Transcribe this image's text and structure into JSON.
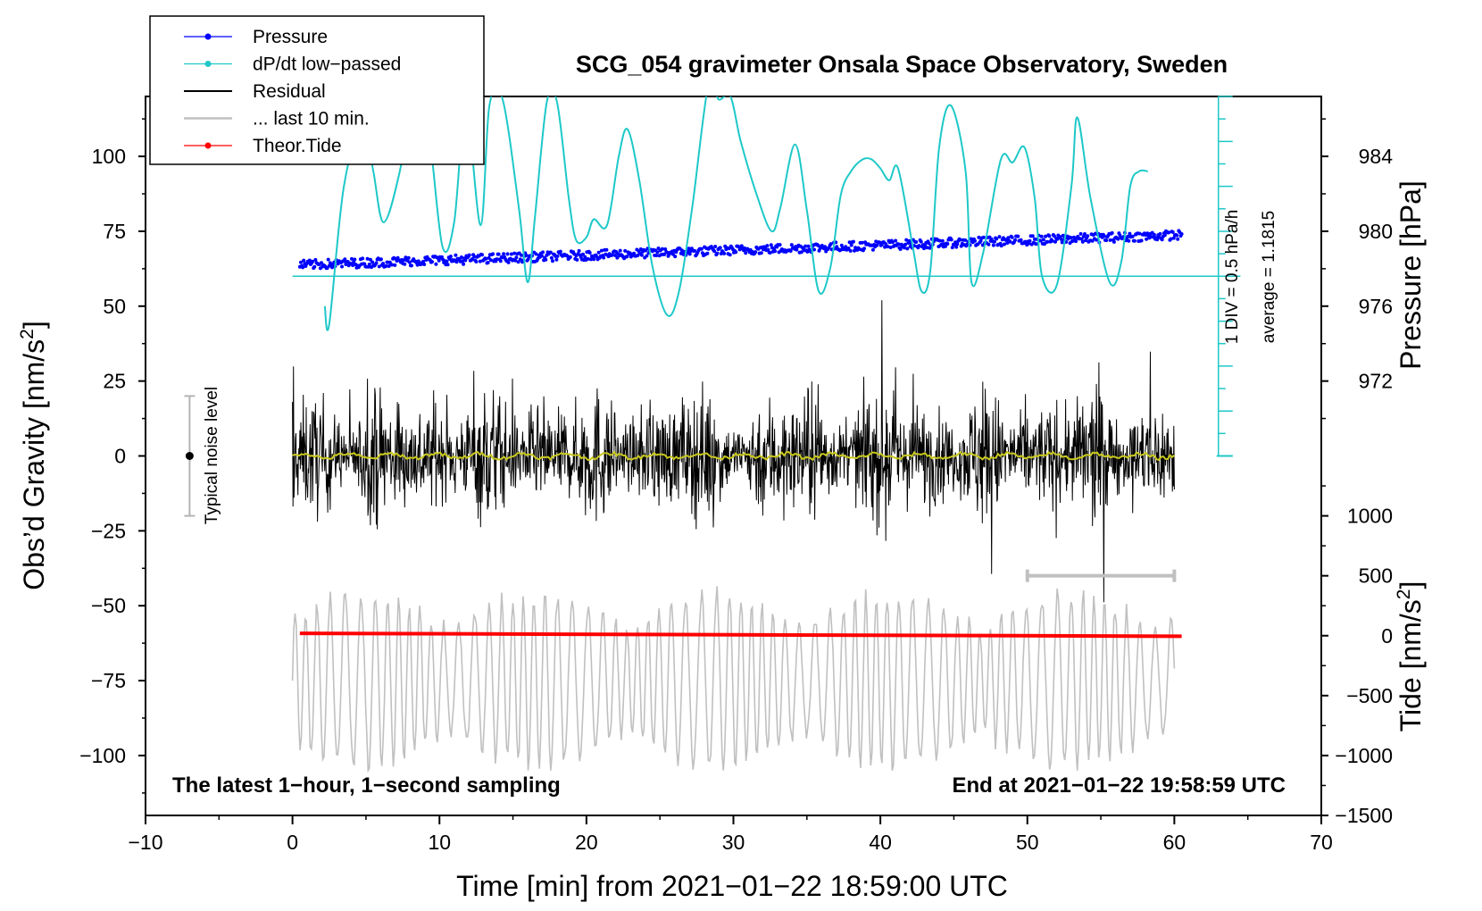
{
  "chart_data": {
    "type": "line",
    "title": "SCG_054 gravimeter Onsala Space Observatory, Sweden",
    "xlabel": "Time [min] from 2021−01−22 18:59:00 UTC",
    "xlim": [
      -10,
      70
    ],
    "xticks": [
      -10,
      0,
      10,
      20,
      30,
      40,
      50,
      60,
      70
    ],
    "x_tick_labels": [
      "−10",
      "0",
      "10",
      "20",
      "30",
      "40",
      "50",
      "60",
      "70"
    ],
    "left_axis": {
      "label_main": "Obs’d Gravity [nm/s",
      "label_sup": "2",
      "label_end": "]",
      "ylim": [
        -120,
        120
      ],
      "ticks": [
        100,
        75,
        50,
        25,
        0,
        -25,
        -50,
        -75,
        -100
      ],
      "tick_labels": [
        "100",
        "75",
        "50",
        "25",
        "0",
        "−25",
        "−50",
        "−75",
        "−100"
      ]
    },
    "pressure_axis": {
      "label": "Pressure [hPa]",
      "ticks": [
        984,
        980,
        976,
        972
      ],
      "tick_labels": [
        "984",
        "980",
        "976",
        "972"
      ],
      "gravity_equiv": [
        [
          984,
          100
        ],
        [
          972,
          25
        ]
      ]
    },
    "tide_axis": {
      "label_main": "Tide [nm/s",
      "label_sup": "2",
      "label_end": "]",
      "ticks": [
        1000,
        500,
        0,
        -500,
        -1000,
        -1500
      ],
      "tick_labels": [
        "1000",
        "500",
        "0",
        "−500",
        "−1000",
        "−1500"
      ],
      "gravity_equiv": [
        [
          1000,
          -20
        ],
        [
          -1500,
          -120
        ]
      ]
    },
    "legend": [
      {
        "name": "Pressure",
        "color": "#0000ff",
        "marker": true
      },
      {
        "name": "dP/dt low−passed",
        "color": "#1ec8c8",
        "marker": true
      },
      {
        "name": "Residual",
        "color": "#000000",
        "marker": false
      },
      {
        "name": "... last 10 min.",
        "color": "#c0c0c0",
        "marker": false
      },
      {
        "name": "Theor.Tide",
        "color": "#ff0000",
        "marker": true
      }
    ],
    "series": [
      {
        "name": "Pressure",
        "unit": "hPa",
        "color": "#0000ff",
        "x_range": [
          0.5,
          60.5
        ],
        "values_start_end": [
          978.2,
          979.8
        ],
        "scatter_hPa": 0.25
      },
      {
        "name": "dP/dt low−passed",
        "color": "#1ec8c8",
        "x": [
          2.2,
          2.5,
          3.5,
          4.8,
          5.5,
          6.2,
          7.3,
          8.5,
          9.3,
          10.2,
          11.0,
          11.8,
          12.8,
          13.4,
          14.3,
          15.4,
          16.0,
          16.5,
          17.3,
          18.0,
          18.8,
          19.3,
          20.0,
          20.5,
          21.4,
          22.2,
          22.8,
          23.6,
          24.5,
          25.5,
          26.3,
          27.2,
          28.3,
          29.0,
          29.8,
          30.5,
          31.6,
          32.6,
          33.2,
          34.2,
          35.0,
          35.8,
          36.6,
          37.3,
          38.0,
          38.8,
          39.4,
          40.0,
          40.6,
          41.2,
          42.2,
          42.8,
          43.4,
          44.0,
          44.8,
          45.8,
          46.2,
          47.0,
          48.2,
          49.0,
          49.8,
          50.5,
          51.0,
          52.0,
          53.0,
          53.4,
          54.3,
          55.6,
          56.4,
          57.0,
          57.6,
          58.2
        ],
        "values": [
          50,
          44,
          90,
          112,
          95,
          78,
          95,
          128,
          108,
          70,
          78,
          116,
          77,
          117,
          119,
          83,
          58,
          80,
          118,
          118,
          86,
          72,
          73,
          79,
          77,
          100,
          109,
          92,
          63,
          47,
          55,
          83,
          124,
          119,
          120,
          105,
          87,
          75,
          83,
          104,
          82,
          55,
          63,
          87,
          95,
          99,
          99,
          96,
          92,
          96,
          70,
          55,
          62,
          103,
          117,
          95,
          58,
          68,
          99,
          98,
          103,
          86,
          60,
          57,
          90,
          113,
          86,
          58,
          65,
          90,
          95,
          95
        ]
      },
      {
        "name": "Residual",
        "color": "#000000",
        "x_range": [
          0,
          60
        ],
        "typical_amplitude": 15,
        "max_abs": 52
      },
      {
        "name": "Residual smoothed",
        "color": "#c8c81e",
        "x_range": [
          0,
          60
        ],
        "level": 0
      },
      {
        "name": "... last 10 min.",
        "color": "#c0c0c0",
        "x_range": [
          0,
          60
        ],
        "center": -75,
        "amplitude_range": [
          -105,
          -42
        ]
      },
      {
        "name": "Theor.Tide",
        "color": "#ff0000",
        "x_range": [
          0.5,
          60.5
        ],
        "unit": "nm/s2",
        "values_start_end": [
          20,
          -5
        ]
      }
    ],
    "noise_bar": {
      "x": -7,
      "center": 0,
      "low": -20,
      "high": 20,
      "label": "Typical noise level"
    },
    "pressure_scale_bar": {
      "x": 63,
      "bottom": 0,
      "top": 120,
      "baseline": 60,
      "labels": [
        "1 DIV = 0.5 hPa/h",
        "average = 1.1815"
      ]
    },
    "ten_minute_bar": {
      "x_start": 50,
      "x_end": 60,
      "y": -40
    },
    "annotations": {
      "bottom_left": "The latest 1−hour, 1−second sampling",
      "bottom_right": "End at 2021−01−22 19:58:59 UTC"
    },
    "noise_bar_dot_color": "#000000"
  }
}
